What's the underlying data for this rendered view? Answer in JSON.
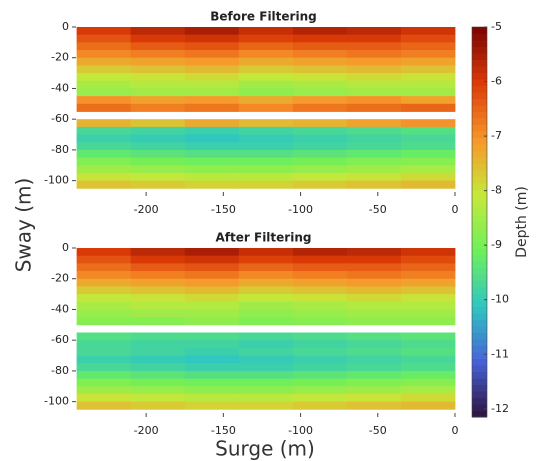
{
  "figure": {
    "xlabel": "Surge (m)",
    "ylabel": "Sway (m)",
    "colorbar": {
      "label": "Depth (m)",
      "clim": [
        -12.15,
        -5
      ],
      "ticks": [
        -5,
        -6,
        -7,
        -8,
        -9,
        -10,
        -11,
        -12
      ],
      "colormap": [
        "#30123b",
        "#4662d7",
        "#2fc7c0",
        "#6ff05a",
        "#c6e83a",
        "#f8952a",
        "#db3a07",
        "#7a0403"
      ]
    }
  },
  "chart_data": [
    {
      "type": "heatmap",
      "title": "Before Filtering",
      "xlim": [
        -248,
        0
      ],
      "ylim": [
        -110,
        0
      ],
      "xticks": [
        -200,
        -150,
        -100,
        -50,
        0
      ],
      "yticks": [
        0,
        -20,
        -40,
        -60,
        -80,
        -100
      ],
      "x_edges": [
        -245,
        -210,
        -175,
        -140,
        -105,
        -70,
        -35,
        0
      ],
      "y_edges": [
        0,
        -5,
        -10,
        -15,
        -20,
        -25,
        -30,
        -35,
        -40,
        -45,
        -50,
        -55,
        -60,
        -65,
        -70,
        -75,
        -80,
        -85,
        -90,
        -95,
        -100,
        -105
      ],
      "values": [
        [
          -6.0,
          -5.7,
          -5.5,
          -5.8,
          -5.6,
          -5.7,
          -5.9
        ],
        [
          -6.3,
          -6.0,
          -5.9,
          -6.1,
          -6.0,
          -6.0,
          -6.2
        ],
        [
          -6.6,
          -6.4,
          -6.3,
          -6.5,
          -6.4,
          -6.4,
          -6.5
        ],
        [
          -6.9,
          -6.8,
          -6.7,
          -6.9,
          -6.8,
          -6.7,
          -6.8
        ],
        [
          -7.3,
          -7.2,
          -7.1,
          -7.3,
          -7.2,
          -7.1,
          -7.2
        ],
        [
          -7.7,
          -7.6,
          -7.5,
          -7.7,
          -7.6,
          -7.5,
          -7.6
        ],
        [
          -8.1,
          -8.0,
          -7.9,
          -8.1,
          -8.0,
          -7.9,
          -8.0
        ],
        [
          -8.4,
          -8.3,
          -8.3,
          -8.5,
          -8.4,
          -8.3,
          -8.3
        ],
        [
          -8.6,
          -8.5,
          -8.5,
          -8.7,
          -8.6,
          -8.5,
          -8.5
        ],
        [
          -7.0,
          -7.2,
          -7.1,
          -7.3,
          -7.1,
          -7.0,
          -7.2
        ],
        [
          -6.6,
          -6.8,
          -6.7,
          -6.9,
          -6.7,
          -6.6,
          -6.5
        ],
        [
          null,
          null,
          null,
          null,
          null,
          null,
          null
        ],
        [
          -7.4,
          -7.6,
          -7.3,
          -7.5,
          -7.4,
          -7.2,
          -7.0
        ],
        [
          -9.7,
          -9.8,
          -9.9,
          -9.8,
          -9.7,
          -9.6,
          -9.5
        ],
        [
          -9.9,
          -10.0,
          -10.1,
          -10.0,
          -9.9,
          -9.8,
          -9.7
        ],
        [
          -9.7,
          -9.8,
          -9.9,
          -9.9,
          -9.8,
          -9.7,
          -9.6
        ],
        [
          -9.3,
          -9.4,
          -9.5,
          -9.5,
          -9.4,
          -9.3,
          -9.2
        ],
        [
          -8.9,
          -9.0,
          -9.1,
          -9.1,
          -9.0,
          -8.9,
          -8.8
        ],
        [
          -8.5,
          -8.6,
          -8.7,
          -8.7,
          -8.6,
          -8.5,
          -8.4
        ],
        [
          -8.0,
          -8.1,
          -8.2,
          -8.2,
          -8.1,
          -8.0,
          -7.9
        ],
        [
          -7.6,
          -7.7,
          -7.8,
          -7.8,
          -7.7,
          -7.6,
          -7.5
        ]
      ]
    },
    {
      "type": "heatmap",
      "title": "After Filtering",
      "xlim": [
        -248,
        0
      ],
      "ylim": [
        -110,
        0
      ],
      "xticks": [
        -200,
        -150,
        -100,
        -50,
        0
      ],
      "yticks": [
        0,
        -20,
        -40,
        -60,
        -80,
        -100
      ],
      "x_edges": [
        -245,
        -210,
        -175,
        -140,
        -105,
        -70,
        -35,
        0
      ],
      "y_edges": [
        0,
        -5,
        -10,
        -15,
        -20,
        -25,
        -30,
        -35,
        -40,
        -45,
        -50,
        -55,
        -60,
        -65,
        -70,
        -75,
        -80,
        -85,
        -90,
        -95,
        -100,
        -105
      ],
      "values": [
        [
          -6.0,
          -5.7,
          -5.5,
          -5.8,
          -5.6,
          -5.7,
          -5.9
        ],
        [
          -6.3,
          -6.0,
          -5.9,
          -6.1,
          -6.0,
          -6.0,
          -6.2
        ],
        [
          -6.6,
          -6.4,
          -6.3,
          -6.5,
          -6.4,
          -6.4,
          -6.5
        ],
        [
          -6.9,
          -6.8,
          -6.7,
          -6.9,
          -6.8,
          -6.7,
          -6.8
        ],
        [
          -7.3,
          -7.2,
          -7.1,
          -7.3,
          -7.2,
          -7.1,
          -7.2
        ],
        [
          -7.7,
          -7.6,
          -7.5,
          -7.7,
          -7.6,
          -7.5,
          -7.6
        ],
        [
          -8.1,
          -8.0,
          -7.9,
          -8.1,
          -8.0,
          -7.9,
          -8.0
        ],
        [
          -8.4,
          -8.3,
          -8.3,
          -8.5,
          -8.4,
          -8.3,
          -8.3
        ],
        [
          -8.6,
          -8.5,
          -8.5,
          -8.7,
          -8.6,
          -8.5,
          -8.5
        ],
        [
          -8.8,
          -8.8,
          -8.7,
          -8.9,
          -8.8,
          -8.7,
          -8.7
        ],
        [
          null,
          null,
          null,
          null,
          null,
          null,
          null
        ],
        [
          -9.5,
          -9.6,
          -9.6,
          -9.7,
          -9.6,
          -9.5,
          -9.4
        ],
        [
          -9.7,
          -9.8,
          -9.8,
          -9.9,
          -9.8,
          -9.7,
          -9.6
        ],
        [
          -9.7,
          -9.8,
          -9.9,
          -9.8,
          -9.7,
          -9.6,
          -9.5
        ],
        [
          -9.9,
          -10.0,
          -10.1,
          -10.0,
          -9.9,
          -9.8,
          -9.7
        ],
        [
          -9.7,
          -9.8,
          -9.9,
          -9.9,
          -9.8,
          -9.7,
          -9.6
        ],
        [
          -9.3,
          -9.4,
          -9.5,
          -9.5,
          -9.4,
          -9.3,
          -9.2
        ],
        [
          -8.9,
          -9.0,
          -9.1,
          -9.1,
          -9.0,
          -8.9,
          -8.8
        ],
        [
          -8.5,
          -8.6,
          -8.7,
          -8.7,
          -8.6,
          -8.5,
          -8.4
        ],
        [
          -8.0,
          -8.1,
          -8.2,
          -8.2,
          -8.1,
          -8.0,
          -7.9
        ],
        [
          -7.6,
          -7.7,
          -7.8,
          -7.8,
          -7.7,
          -7.6,
          -7.5
        ]
      ]
    }
  ]
}
